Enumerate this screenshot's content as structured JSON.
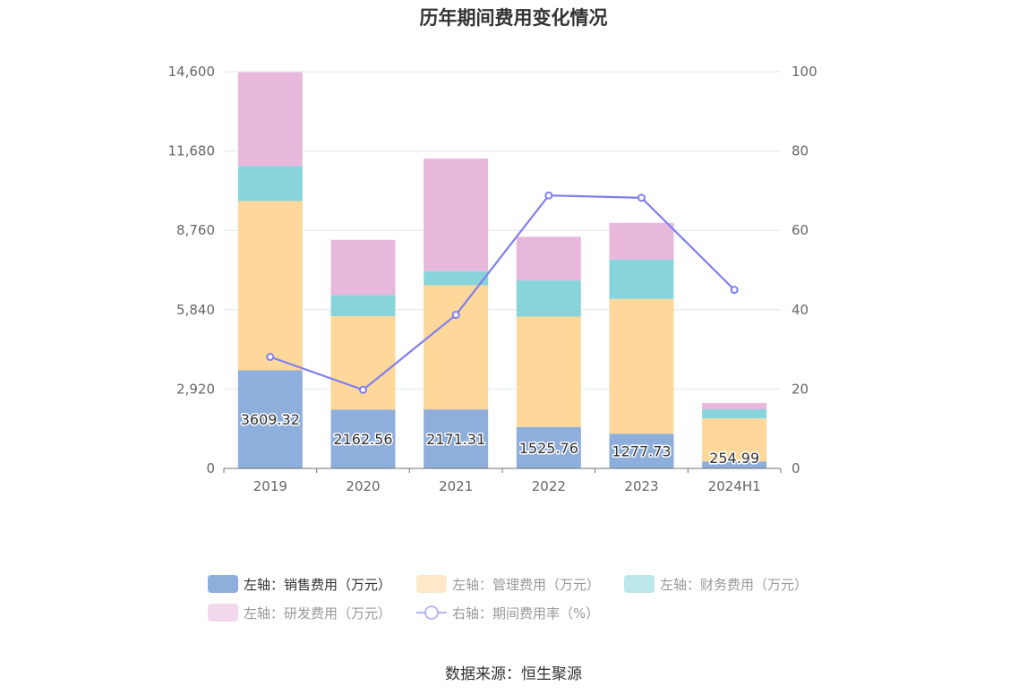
{
  "title": "历年期间费用变化情况",
  "source": "数据来源：恒生聚源",
  "colors": {
    "sales": "#8eaedc",
    "admin": "#fdd89a",
    "finance": "#87d5da",
    "rnd": "#e7b8db",
    "rate": "#7f7ff0",
    "axis_text": "#666666",
    "grid": "#e0e6f1"
  },
  "chart_data": {
    "type": "bar",
    "stacked": true,
    "categories": [
      "2019",
      "2020",
      "2021",
      "2022",
      "2023",
      "2024H1"
    ],
    "left_axis": {
      "min": 0,
      "max": 14600,
      "ticks": [
        "0",
        "2,920",
        "5,840",
        "8,760",
        "11,680",
        "14,600"
      ]
    },
    "right_axis": {
      "min": 0,
      "max": 100,
      "ticks": [
        "0",
        "20",
        "40",
        "60",
        "80",
        "100"
      ]
    },
    "grid": true,
    "legend_position": "bottom",
    "series": [
      {
        "key": "sales",
        "name": "左轴：销售费用（万元）",
        "axis": "left",
        "type": "bar",
        "values": [
          3609.32,
          2162.56,
          2171.31,
          1525.76,
          1277.73,
          254.99
        ],
        "labels": [
          "3609.32",
          "2162.56",
          "2171.31",
          "1525.76",
          "1277.73",
          "254.99"
        ]
      },
      {
        "key": "admin",
        "name": "左轴：管理费用（万元）",
        "axis": "left",
        "type": "bar",
        "values": [
          6230,
          3440,
          4570,
          4060,
          4960,
          1580
        ]
      },
      {
        "key": "finance",
        "name": "左轴：财务费用（万元）",
        "axis": "left",
        "type": "bar",
        "values": [
          1290,
          780,
          520,
          1330,
          1450,
          340
        ]
      },
      {
        "key": "rnd",
        "name": "左轴：研发费用（万元）",
        "axis": "left",
        "type": "bar",
        "values": [
          3450,
          2030,
          4140,
          1610,
          1350,
          230
        ]
      },
      {
        "key": "rate",
        "name": "右轴：期间费用率（%）",
        "axis": "right",
        "type": "line",
        "values": [
          28.1,
          19.8,
          38.7,
          68.8,
          68.2,
          45.0
        ]
      }
    ]
  }
}
